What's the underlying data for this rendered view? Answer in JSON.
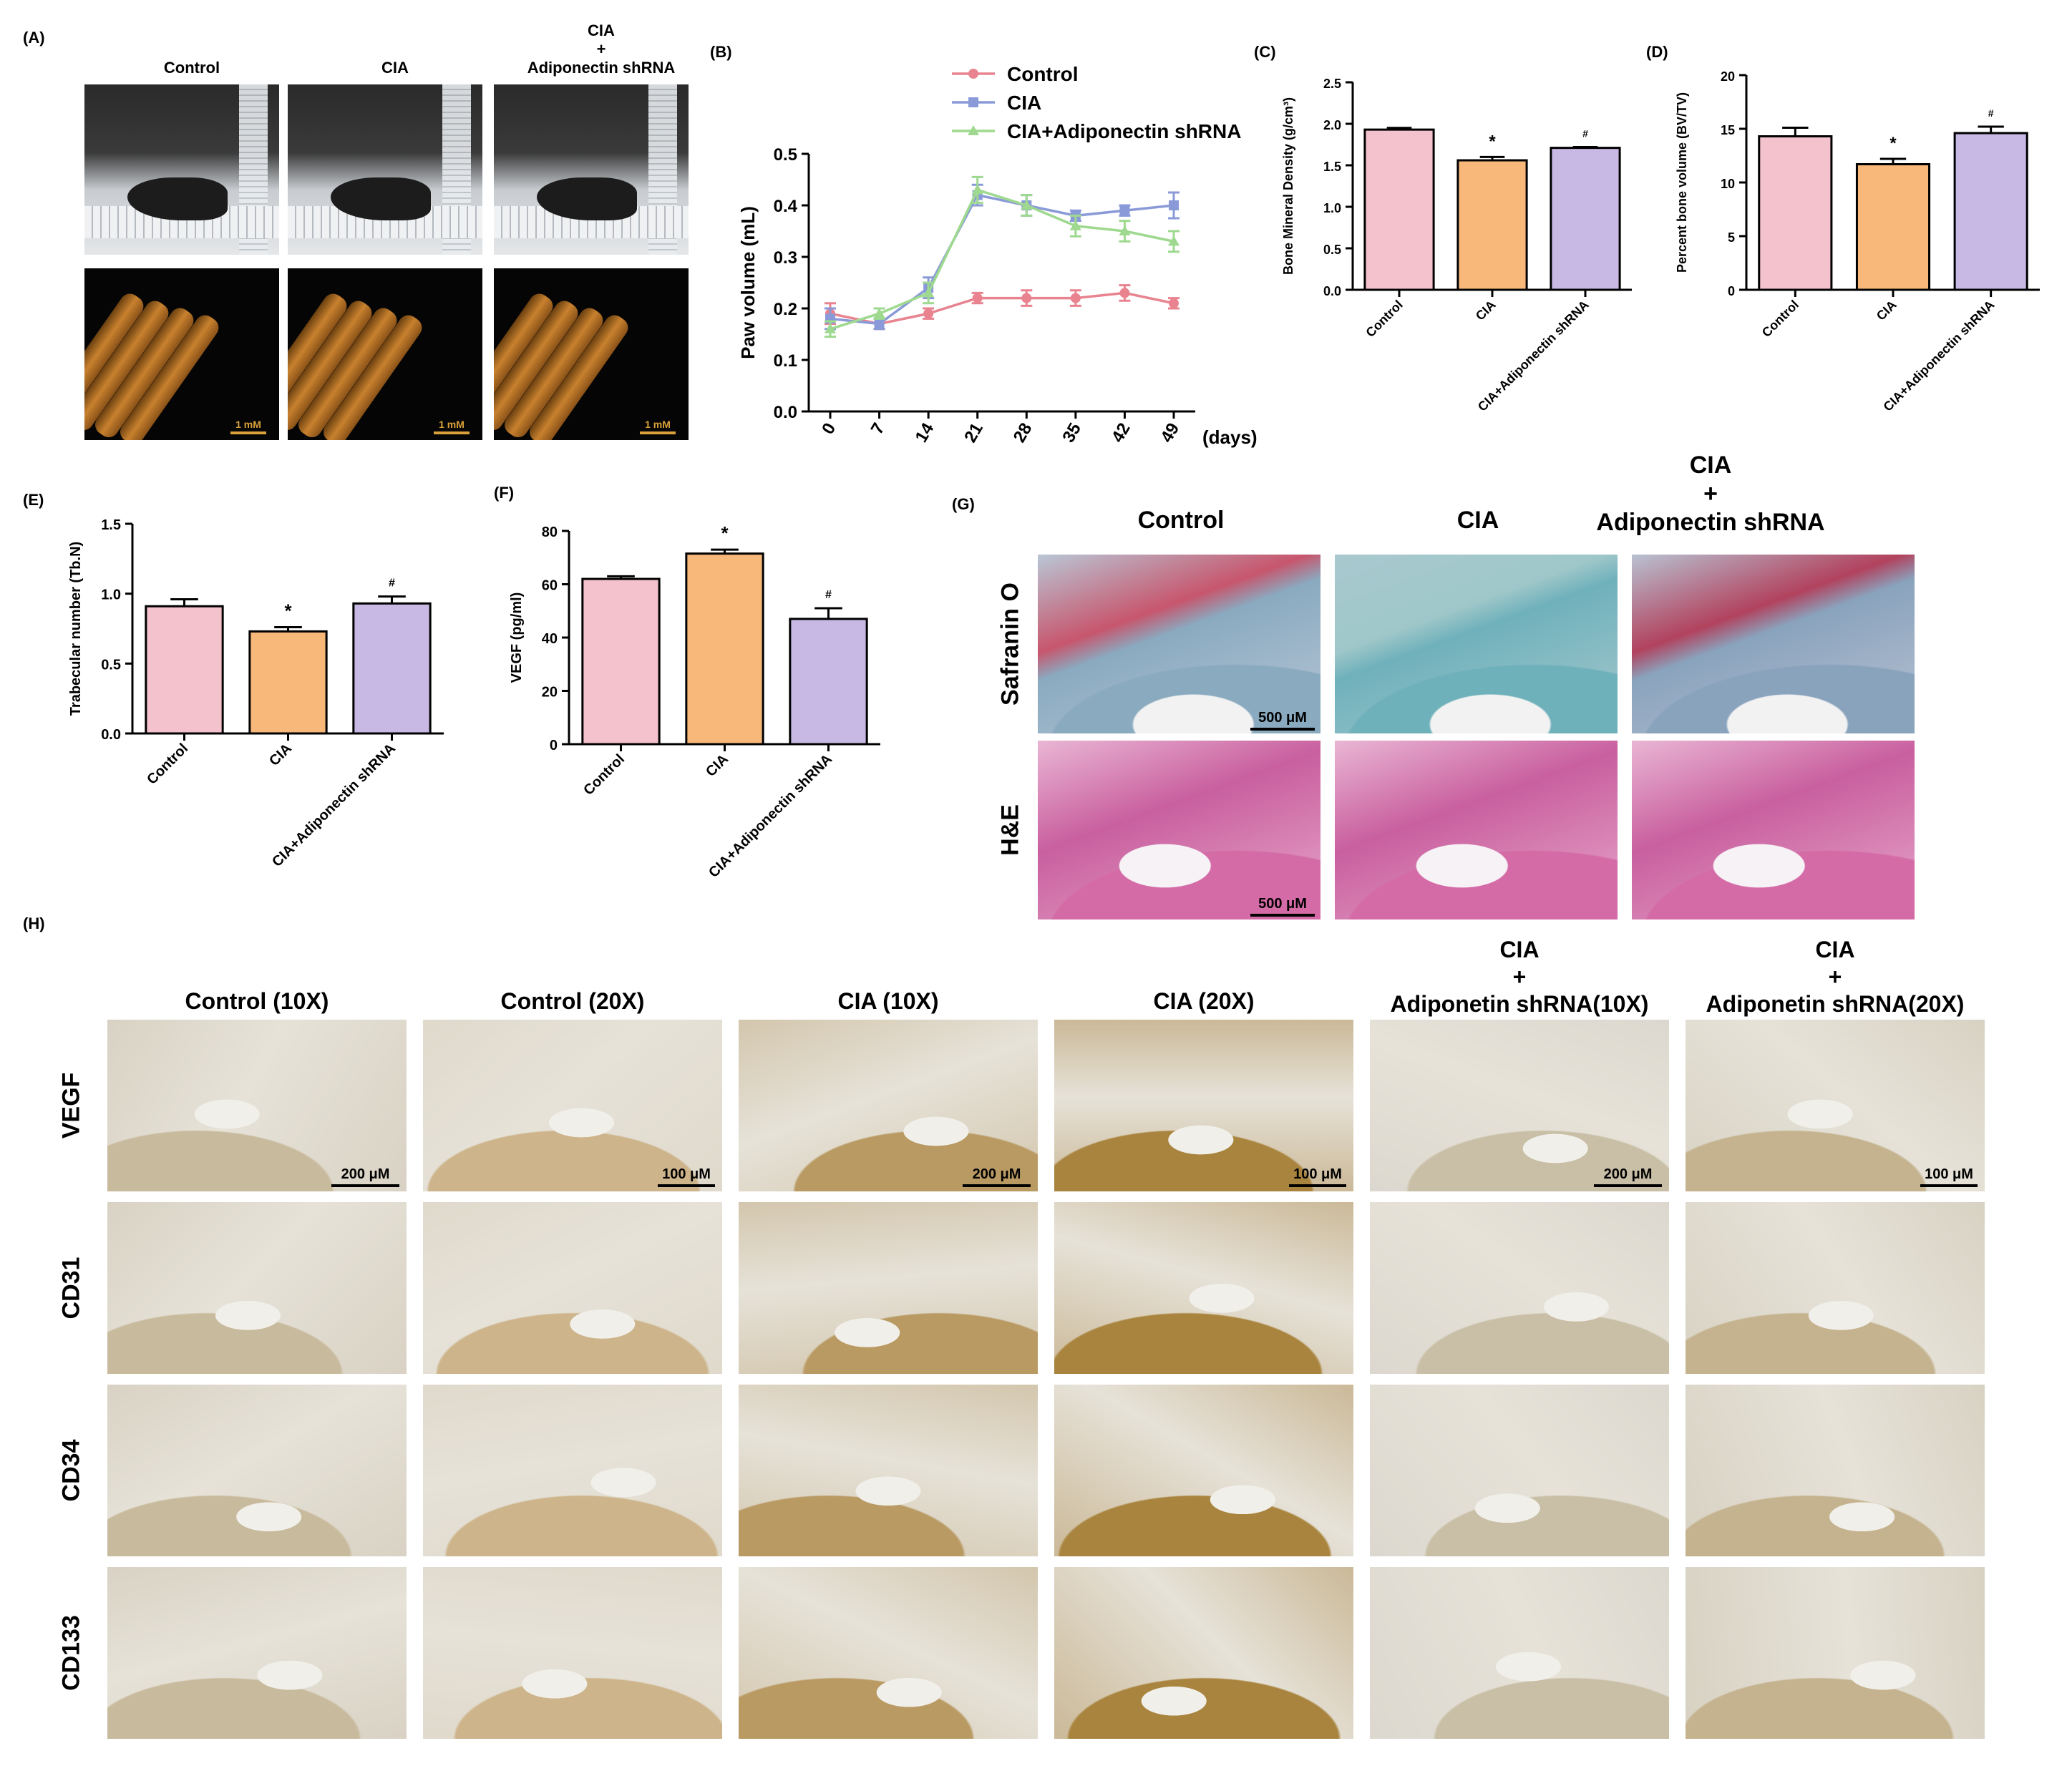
{
  "panels": {
    "A": {
      "label": "(A)",
      "columns": [
        "Control",
        "CIA",
        "CIA\n+\nAdiponectin shRNA"
      ],
      "scale_bar": "1 mM"
    },
    "B": {
      "label": "(B)"
    },
    "C": {
      "label": "(C)"
    },
    "D": {
      "label": "(D)"
    },
    "E": {
      "label": "(E)"
    },
    "F": {
      "label": "(F)"
    },
    "G": {
      "label": "(G)",
      "columns": [
        "Control",
        "CIA",
        "CIA\n+\nAdiponectin shRNA"
      ],
      "rows": [
        "Safranin O",
        "H&E"
      ],
      "scale_bar": "500 μM"
    },
    "H": {
      "label": "(H)",
      "columns": [
        "Control (10X)",
        "Control (20X)",
        "CIA (10X)",
        "CIA (20X)",
        "CIA\n+\nAdiponetin shRNA(10X)",
        "CIA\n+\nAdiponetin shRNA(20X)"
      ],
      "rows": [
        "VEGF",
        "CD31",
        "CD34",
        "CD133"
      ],
      "scale_bars": [
        "200 μM",
        "100 μM",
        "200 μM",
        "100 μM",
        "200 μM",
        "100 μM"
      ]
    }
  },
  "colors": {
    "control": "#f4c2cc",
    "cia": "#f7b87a",
    "shrna": "#c8b8e4",
    "line_control": "#e8838f",
    "line_cia": "#8a9ad8",
    "line_shrna": "#9ed98f"
  },
  "chart_data": [
    {
      "id": "B",
      "type": "line",
      "ylabel": "Paw volume (mL)",
      "xlabel": "(days)",
      "x": [
        0,
        7,
        14,
        21,
        28,
        35,
        42,
        49
      ],
      "ylim": [
        0.0,
        0.5
      ],
      "yticks": [
        "0.0",
        "0.1",
        "0.2",
        "0.3",
        "0.4",
        "0.5"
      ],
      "legend": "top-right",
      "series": [
        {
          "name": "Control",
          "values": [
            0.19,
            0.17,
            0.19,
            0.22,
            0.22,
            0.22,
            0.23,
            0.21
          ],
          "err": [
            0.02,
            0.01,
            0.01,
            0.01,
            0.015,
            0.015,
            0.015,
            0.01
          ]
        },
        {
          "name": "CIA",
          "values": [
            0.18,
            0.17,
            0.24,
            0.42,
            0.4,
            0.38,
            0.39,
            0.4
          ],
          "err": [
            0.02,
            0.01,
            0.02,
            0.02,
            0.02,
            0.01,
            0.01,
            0.025
          ]
        },
        {
          "name": "CIA+Adiponectin shRNA",
          "values": [
            0.16,
            0.19,
            0.23,
            0.43,
            0.4,
            0.36,
            0.35,
            0.33
          ],
          "err": [
            0.015,
            0.01,
            0.02,
            0.025,
            0.02,
            0.02,
            0.02,
            0.02
          ]
        }
      ]
    },
    {
      "id": "C",
      "type": "bar",
      "ylabel": "Bone Mineral Density (g/cm³)",
      "categories": [
        "Control",
        "CIA",
        "CIA+Adiponectin shRNA"
      ],
      "values": [
        1.93,
        1.56,
        1.71
      ],
      "err": [
        0.02,
        0.04,
        0.01
      ],
      "marks": [
        "",
        "*",
        "#"
      ],
      "ylim": [
        0.0,
        2.5
      ],
      "yticks": [
        "0.0",
        "0.5",
        "1.0",
        "1.5",
        "2.0",
        "2.5"
      ]
    },
    {
      "id": "D",
      "type": "bar",
      "ylabel": "Percent bone volume (BV/TV)",
      "categories": [
        "Control",
        "CIA",
        "CIA+Adiponectin shRNA"
      ],
      "values": [
        14.3,
        11.7,
        14.6
      ],
      "err": [
        0.8,
        0.5,
        0.6
      ],
      "marks": [
        "",
        "*",
        "#"
      ],
      "ylim": [
        0,
        20
      ],
      "yticks": [
        "0",
        "5",
        "10",
        "15",
        "20"
      ]
    },
    {
      "id": "E",
      "type": "bar",
      "ylabel": "Trabecular number (Tb.N)",
      "categories": [
        "Control",
        "CIA",
        "CIA+Adiponectin shRNA"
      ],
      "values": [
        0.91,
        0.73,
        0.93
      ],
      "err": [
        0.05,
        0.03,
        0.05
      ],
      "marks": [
        "",
        "*",
        "#"
      ],
      "ylim": [
        0.0,
        1.5
      ],
      "yticks": [
        "0.0",
        "0.5",
        "1.0",
        "1.5"
      ]
    },
    {
      "id": "F",
      "type": "bar",
      "ylabel": "VEGF (pg/ml)",
      "categories": [
        "Control",
        "CIA",
        "CIA+Adiponectin shRNA"
      ],
      "values": [
        62,
        71.5,
        47
      ],
      "err": [
        1.0,
        1.5,
        4.0
      ],
      "marks": [
        "",
        "*",
        "#"
      ],
      "ylim": [
        0,
        80
      ],
      "yticks": [
        "0",
        "20",
        "40",
        "60",
        "80"
      ]
    }
  ]
}
